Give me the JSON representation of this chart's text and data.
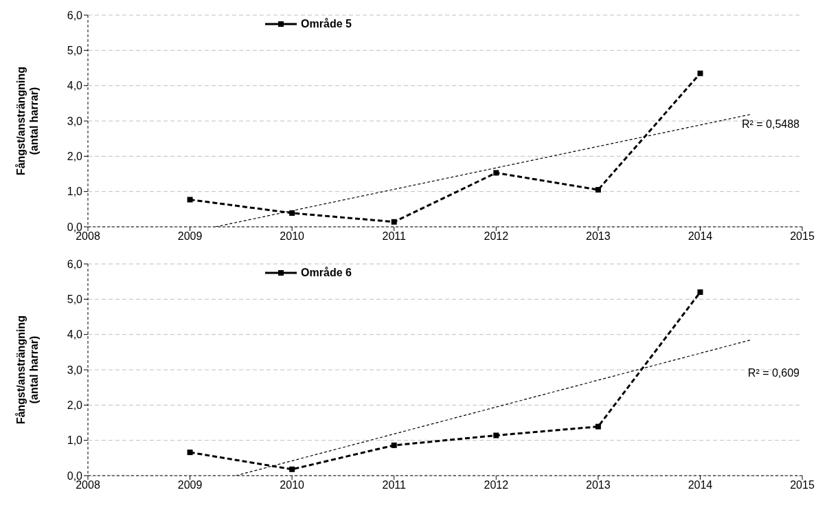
{
  "chart_data": [
    {
      "type": "line",
      "x": [
        2009,
        2010,
        2011,
        2012,
        2013,
        2014
      ],
      "ylabel": "Fångst/ansträngning\n(antal harrar)",
      "xlim": [
        2008,
        2015
      ],
      "xticks": [
        2008,
        2009,
        2010,
        2011,
        2012,
        2013,
        2014,
        2015
      ],
      "ylim": [
        0,
        6
      ],
      "yticks": [
        {
          "value": 0,
          "label": "0,0"
        },
        {
          "value": 1,
          "label": "1,0"
        },
        {
          "value": 2,
          "label": "2,0"
        },
        {
          "value": 3,
          "label": "3,0"
        },
        {
          "value": 4,
          "label": "4,0"
        },
        {
          "value": 5,
          "label": "5,0"
        },
        {
          "value": 6,
          "label": "6,0"
        }
      ],
      "grid": "y",
      "legend": "top",
      "line_style": "dashed",
      "series": [
        {
          "name": "Område 5",
          "color": "#000000",
          "marker": "square",
          "values": [
            0.77,
            0.39,
            0.14,
            1.53,
            1.05,
            4.35
          ]
        },
        {
          "type": "line",
          "color": "#000000",
          "marker": "none",
          "x": [
            2009.25,
            2014.5
          ],
          "values": [
            0,
            3.19
          ]
        }
      ],
      "annotations": [
        "R² = 0,5488"
      ]
    },
    {
      "type": "line",
      "x": [
        2009,
        2010,
        2011,
        2012,
        2013,
        2014
      ],
      "ylabel": "Fångst/ansträngning\n(antal harrar)",
      "xlim": [
        2008,
        2015
      ],
      "xticks": [
        2008,
        2009,
        2010,
        2011,
        2012,
        2013,
        2014,
        2015
      ],
      "ylim": [
        0,
        6
      ],
      "yticks": [
        {
          "value": 0,
          "label": "0,0"
        },
        {
          "value": 1,
          "label": "1,0"
        },
        {
          "value": 2,
          "label": "2,0"
        },
        {
          "value": 3,
          "label": "3,0"
        },
        {
          "value": 4,
          "label": "4,0"
        },
        {
          "value": 5,
          "label": "5,0"
        },
        {
          "value": 6,
          "label": "6,0"
        }
      ],
      "grid": "y",
      "legend": "top",
      "line_style": "dashed",
      "series": [
        {
          "name": "Område 6",
          "color": "#000000",
          "marker": "square",
          "values": [
            0.66,
            0.18,
            0.86,
            1.14,
            1.39,
            5.2
          ]
        },
        {
          "type": "line",
          "color": "#000000",
          "marker": "none",
          "x": [
            2009.45,
            2014.5
          ],
          "values": [
            0,
            3.85
          ]
        }
      ],
      "annotations": [
        "R² = 0,609"
      ]
    }
  ]
}
